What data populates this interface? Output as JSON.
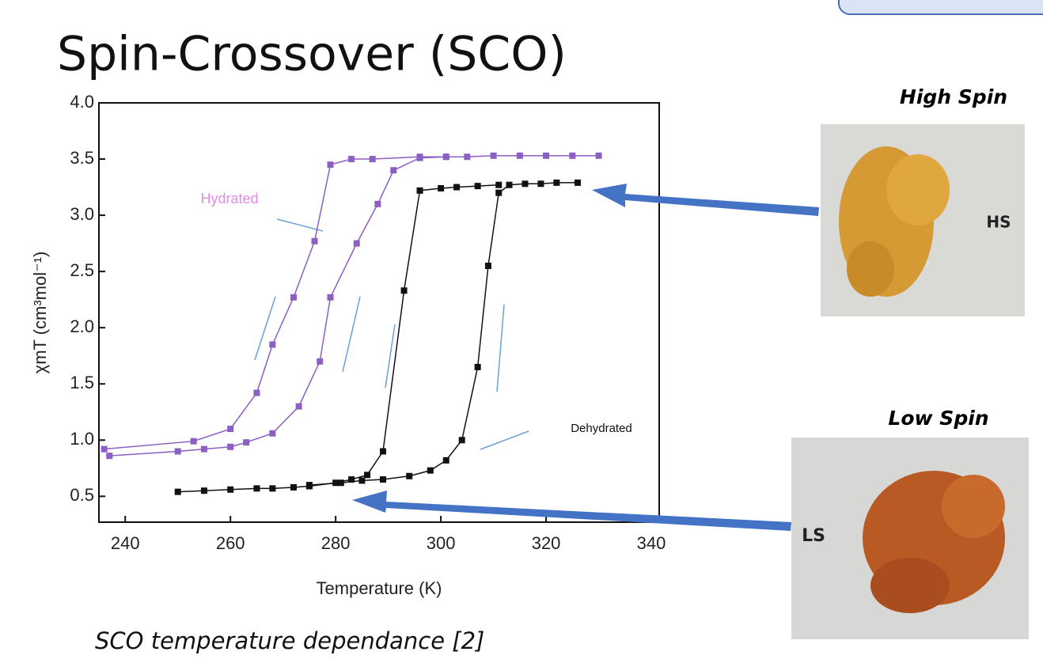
{
  "title": "Spin-Crossover (SCO)",
  "caption": "SCO  temperature dependance [2]",
  "photos": [
    {
      "title": "High Spin",
      "label": "HS"
    },
    {
      "title": "Low Spin",
      "label": "LS"
    }
  ],
  "chart_data": {
    "type": "line",
    "x_label": "Temperature (K)",
    "y_label": "χmT (cm³mol⁻¹)",
    "annotations": [
      "Hydrated",
      "Dehydrated"
    ],
    "xlim": [
      235,
      341.5
    ],
    "xticks": [
      240,
      260,
      280,
      300,
      320,
      340
    ],
    "ylim": [
      0.27,
      4.0
    ],
    "yticks": [
      0.5,
      {
        "value": 1,
        "label": "1.0"
      },
      1.5,
      {
        "value": 2,
        "label": "2.0"
      },
      2.5,
      {
        "value": 3,
        "label": "3.0"
      },
      3.5,
      {
        "value": 4,
        "label": "4.0"
      }
    ],
    "series": [
      {
        "color": "#8b5fc4",
        "x": [
          236,
          253,
          260,
          265,
          268,
          272,
          276,
          279,
          283,
          287,
          296,
          301
        ],
        "values": [
          0.92,
          0.99,
          1.1,
          1.42,
          1.85,
          2.27,
          2.77,
          3.45,
          3.5,
          3.5,
          3.52,
          3.52
        ]
      },
      {
        "color": "#8b5fc4",
        "x": [
          237,
          250,
          255,
          260,
          263,
          268,
          273,
          277,
          279,
          284,
          288,
          291,
          296,
          301,
          305,
          310,
          315,
          320,
          325,
          330
        ],
        "values": [
          0.86,
          0.9,
          0.92,
          0.94,
          0.98,
          1.06,
          1.3,
          1.7,
          2.27,
          2.75,
          3.1,
          3.4,
          3.51,
          3.52,
          3.52,
          3.53,
          3.53,
          3.53,
          3.53,
          3.53
        ]
      },
      {
        "color": "#111111",
        "x": [
          250,
          255,
          260,
          265,
          268,
          272,
          275,
          280,
          283,
          286,
          289,
          293,
          296,
          300,
          303,
          307,
          311
        ],
        "values": [
          0.54,
          0.55,
          0.56,
          0.57,
          0.57,
          0.58,
          0.59,
          0.62,
          0.65,
          0.69,
          0.9,
          2.33,
          3.22,
          3.24,
          3.25,
          3.26,
          3.27
        ]
      },
      {
        "color": "#111111",
        "x": [
          275,
          281,
          285,
          289,
          294,
          298,
          301,
          304,
          307,
          309,
          311,
          313,
          316,
          319,
          322,
          326
        ],
        "values": [
          0.6,
          0.62,
          0.64,
          0.65,
          0.68,
          0.73,
          0.82,
          1.0,
          1.65,
          2.55,
          3.2,
          3.27,
          3.28,
          3.28,
          3.29,
          3.29
        ]
      }
    ]
  }
}
